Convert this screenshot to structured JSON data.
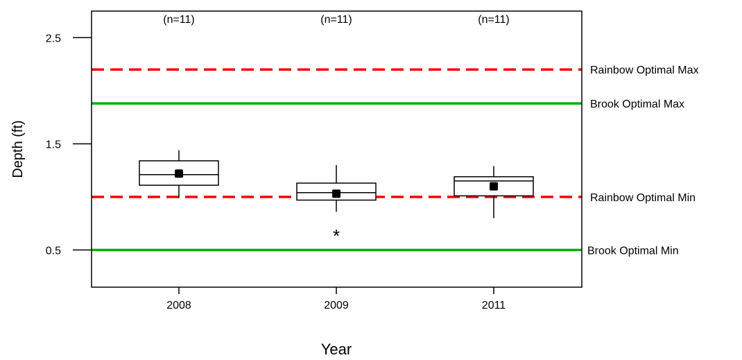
{
  "chart_data": {
    "type": "box",
    "xlabel": "Year",
    "ylabel": "Depth (ft)",
    "ylim": [
      0.15,
      2.75
    ],
    "yticks": [
      "0.5",
      "1.5",
      "2.5"
    ],
    "categories": [
      "2008",
      "2009",
      "2011"
    ],
    "n_labels": [
      "(n=11)",
      "(n=11)",
      "(n=11)"
    ],
    "boxes": [
      {
        "category": "2008",
        "whisker_low": 0.99,
        "q1": 1.11,
        "median": 1.21,
        "q3": 1.34,
        "whisker_high": 1.44,
        "mean": 1.22,
        "outliers": []
      },
      {
        "category": "2009",
        "whisker_low": 0.86,
        "q1": 0.97,
        "median": 1.04,
        "q3": 1.13,
        "whisker_high": 1.3,
        "mean": 1.03,
        "outliers": [
          0.68
        ]
      },
      {
        "category": "2011",
        "whisker_low": 0.8,
        "q1": 1.01,
        "median": 1.15,
        "q3": 1.19,
        "whisker_high": 1.29,
        "mean": 1.1,
        "outliers": []
      }
    ],
    "reference_lines": [
      {
        "label": "Rainbow Optimal Max",
        "value": 2.2,
        "color": "#ff0000",
        "style": "dashed"
      },
      {
        "label": "Brook Optimal Max",
        "value": 1.88,
        "color": "#00b000",
        "style": "solid"
      },
      {
        "label": "Rainbow Optimal Min",
        "value": 1.0,
        "color": "#ff0000",
        "style": "dashed"
      },
      {
        "label": "Brook Optimal Min",
        "value": 0.5,
        "color": "#00b000",
        "style": "solid"
      }
    ],
    "outlier_symbol": "*",
    "grid": false
  }
}
